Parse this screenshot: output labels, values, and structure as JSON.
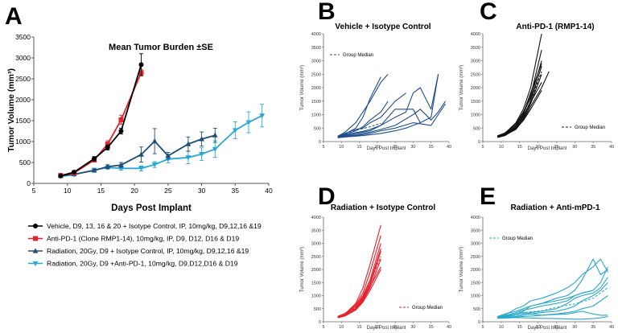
{
  "chart_data": [
    {
      "panel": "A",
      "type": "line",
      "title": "Mean Tumor Burden ±SE",
      "xlabel": "Days Post Implant",
      "ylabel": "Tumor Volume (mm³)",
      "xlim": [
        5,
        40
      ],
      "ylim": [
        0,
        3500
      ],
      "xticks": [
        5,
        10,
        15,
        20,
        25,
        30,
        35,
        40
      ],
      "yticks": [
        0,
        500,
        1000,
        1500,
        2000,
        2500,
        3000,
        3500
      ],
      "series": [
        {
          "name": "Vehicle, D9, 13, 16 & 20 + Isotype Control, IP, 10mg/kg, D9,12,16 &19",
          "color": "#000000",
          "marker": "circle",
          "x": [
            9,
            11,
            14,
            16,
            18,
            21
          ],
          "y": [
            180,
            270,
            590,
            860,
            1250,
            2840
          ],
          "err": [
            15,
            25,
            50,
            60,
            70,
            260
          ]
        },
        {
          "name": "Anti-PD-1 (Clone RMP1-14), 10mg/kg, IP, D9, D12, D16 & D19",
          "color": "#e8202a",
          "marker": "square",
          "x": [
            9,
            11,
            14,
            16,
            18,
            21
          ],
          "y": [
            190,
            250,
            560,
            940,
            1520,
            2650
          ],
          "err": [
            15,
            30,
            50,
            80,
            110,
            80
          ]
        },
        {
          "name": "Radiation, 20Gy, D9 + Isotype Control, IP, 10mg/kg, D9,12,16 &19",
          "color": "#1f4e79",
          "marker": "triangle-up",
          "x": [
            9,
            11,
            14,
            16,
            18,
            21,
            23,
            25,
            28,
            30,
            32
          ],
          "y": [
            180,
            220,
            310,
            400,
            440,
            690,
            1010,
            660,
            940,
            1060,
            1150
          ],
          "err": [
            15,
            25,
            35,
            45,
            60,
            180,
            300,
            80,
            170,
            170,
            170
          ]
        },
        {
          "name": "Radiation, 20Gy, D9 +Anti-PD-1, 10mg/kg, D9,D12,D16 & D19",
          "color": "#29a8d8",
          "marker": "triangle-down",
          "x": [
            9,
            11,
            14,
            16,
            18,
            21,
            23,
            25,
            28,
            30,
            32,
            35,
            37,
            39
          ],
          "y": [
            170,
            210,
            320,
            380,
            360,
            360,
            450,
            580,
            620,
            700,
            820,
            1270,
            1460,
            1620
          ],
          "err": [
            15,
            20,
            30,
            40,
            40,
            60,
            70,
            90,
            150,
            150,
            200,
            200,
            250,
            270
          ]
        }
      ]
    },
    {
      "panel": "B",
      "type": "line",
      "title": "Vehicle + Isotype Control",
      "xlabel": "Days Post Implant",
      "ylabel": "Tumor Volume (mm³)",
      "xlim": [
        5,
        40
      ],
      "ylim": [
        0,
        4000
      ],
      "xticks": [
        5,
        10,
        15,
        20,
        25,
        30,
        35,
        40
      ],
      "yticks": [
        0,
        500,
        1000,
        1500,
        2000,
        2500,
        3000,
        3500,
        4000
      ],
      "legend": "Group Median",
      "color": "#1f4e8c",
      "median": {
        "x": [
          9,
          11,
          14,
          16,
          18,
          21
        ],
        "y": [
          180,
          260,
          420,
          480,
          550,
          680
        ]
      },
      "series": [
        {
          "x": [
            9,
            11,
            14,
            16,
            18,
            21,
            23
          ],
          "y": [
            200,
            350,
            700,
            1100,
            1500,
            2200,
            2500
          ]
        },
        {
          "x": [
            9,
            11,
            14,
            16,
            18,
            21
          ],
          "y": [
            180,
            280,
            500,
            900,
            1600,
            2400
          ]
        },
        {
          "x": [
            9,
            11,
            14,
            16,
            18,
            21,
            23
          ],
          "y": [
            150,
            250,
            400,
            550,
            800,
            1100,
            1500
          ]
        },
        {
          "x": [
            9,
            11,
            14,
            16,
            18,
            21,
            25,
            28
          ],
          "y": [
            200,
            300,
            450,
            500,
            700,
            900,
            1500,
            1800
          ]
        },
        {
          "x": [
            9,
            11,
            14,
            16,
            18,
            21,
            25,
            28,
            30,
            32,
            35,
            37
          ],
          "y": [
            170,
            220,
            300,
            350,
            400,
            600,
            900,
            1100,
            1800,
            2000,
            1200,
            2500
          ]
        },
        {
          "x": [
            9,
            11,
            14,
            16,
            18,
            21,
            25,
            30,
            32,
            35,
            37,
            39
          ],
          "y": [
            160,
            200,
            250,
            300,
            350,
            450,
            600,
            1000,
            1200,
            800,
            1100,
            1500
          ]
        },
        {
          "x": [
            9,
            11,
            14,
            16,
            18,
            21,
            25,
            30,
            35,
            37,
            39
          ],
          "y": [
            150,
            180,
            220,
            260,
            300,
            400,
            500,
            700,
            600,
            1000,
            1400
          ]
        },
        {
          "x": [
            9,
            11,
            14,
            16,
            18,
            21,
            25,
            30,
            32
          ],
          "y": [
            190,
            230,
            330,
            380,
            450,
            600,
            1200,
            1200,
            700
          ]
        },
        {
          "x": [
            9,
            11,
            14,
            16,
            18,
            21,
            25,
            28,
            30,
            32,
            35,
            37
          ],
          "y": [
            140,
            170,
            200,
            220,
            250,
            300,
            400,
            500,
            600,
            700,
            900,
            2500
          ]
        }
      ]
    },
    {
      "panel": "C",
      "type": "line",
      "title": "Anti-PD-1 (RMP1-14)",
      "xlabel": "Days Post Implant",
      "ylabel": "Tumor Volume (mm³)",
      "xlim": [
        5,
        40
      ],
      "ylim": [
        0,
        4000
      ],
      "xticks": [
        5,
        10,
        15,
        20,
        25,
        30,
        35,
        40
      ],
      "yticks": [
        0,
        500,
        1000,
        1500,
        2000,
        2500,
        3000,
        3500,
        4000
      ],
      "legend": "Group Median",
      "color": "#111111",
      "median": {
        "x": [
          9,
          11,
          14,
          16,
          18,
          21
        ],
        "y": [
          190,
          260,
          560,
          940,
          1500,
          2600
        ]
      },
      "series": [
        {
          "x": [
            9,
            11,
            14,
            16,
            18,
            21
          ],
          "y": [
            200,
            300,
            700,
            1200,
            2000,
            4000
          ]
        },
        {
          "x": [
            9,
            11,
            14,
            16,
            18,
            21
          ],
          "y": [
            180,
            280,
            600,
            1000,
            1700,
            3400
          ]
        },
        {
          "x": [
            9,
            11,
            14,
            16,
            18,
            21
          ],
          "y": [
            210,
            320,
            650,
            1100,
            1600,
            3000
          ]
        },
        {
          "x": [
            9,
            11,
            14,
            16,
            18,
            21
          ],
          "y": [
            190,
            260,
            550,
            900,
            1500,
            2800
          ]
        },
        {
          "x": [
            9,
            11,
            14,
            16,
            18,
            21
          ],
          "y": [
            170,
            240,
            500,
            850,
            1400,
            2500
          ]
        },
        {
          "x": [
            9,
            11,
            14,
            16,
            18,
            21,
            23
          ],
          "y": [
            160,
            230,
            450,
            800,
            1300,
            2000,
            2600
          ]
        },
        {
          "x": [
            9,
            11,
            14,
            16,
            18,
            21
          ],
          "y": [
            200,
            270,
            520,
            950,
            1450,
            2200
          ]
        },
        {
          "x": [
            9,
            11,
            14,
            16,
            18,
            21
          ],
          "y": [
            150,
            220,
            480,
            780,
            1200,
            1900
          ]
        },
        {
          "x": [
            9,
            11,
            14,
            16,
            18,
            21
          ],
          "y": [
            220,
            300,
            600,
            1050,
            1800,
            2900
          ]
        }
      ]
    },
    {
      "panel": "D",
      "type": "line",
      "title": "Radiation + Isotype Control",
      "xlabel": "Days Post Implant",
      "ylabel": "Tumor Volume (mm³)",
      "xlim": [
        5,
        40
      ],
      "ylim": [
        0,
        4000
      ],
      "xticks": [
        5,
        10,
        15,
        20,
        25,
        30,
        35,
        40
      ],
      "yticks": [
        0,
        500,
        1000,
        1500,
        2000,
        2500,
        3000,
        3500,
        4000
      ],
      "legend": "Group Median",
      "color": "#e8202a",
      "median": {
        "x": [
          9,
          11,
          14,
          16,
          18,
          21
        ],
        "y": [
          180,
          250,
          550,
          920,
          1480,
          2500
        ]
      },
      "series": [
        {
          "x": [
            9,
            11,
            14,
            16,
            18,
            21
          ],
          "y": [
            200,
            300,
            700,
            1300,
            2200,
            3700
          ]
        },
        {
          "x": [
            9,
            11,
            14,
            16,
            18,
            21
          ],
          "y": [
            180,
            280,
            650,
            1100,
            1900,
            3300
          ]
        },
        {
          "x": [
            9,
            11,
            14,
            16,
            18,
            21
          ],
          "y": [
            190,
            260,
            600,
            1000,
            1600,
            3000
          ]
        },
        {
          "x": [
            9,
            11,
            14,
            16,
            18,
            21
          ],
          "y": [
            210,
            320,
            580,
            950,
            1500,
            2800
          ]
        },
        {
          "x": [
            9,
            11,
            14,
            16,
            18,
            21
          ],
          "y": [
            170,
            240,
            520,
            900,
            1400,
            2700
          ]
        },
        {
          "x": [
            9,
            11,
            14,
            16,
            18,
            21
          ],
          "y": [
            160,
            230,
            480,
            800,
            1300,
            2400
          ]
        },
        {
          "x": [
            9,
            11,
            14,
            16,
            18,
            21
          ],
          "y": [
            200,
            270,
            500,
            850,
            1350,
            2100
          ]
        },
        {
          "x": [
            9,
            11,
            14,
            16,
            18,
            21
          ],
          "y": [
            150,
            220,
            450,
            750,
            1200,
            2000
          ]
        }
      ]
    },
    {
      "panel": "E",
      "type": "line",
      "title": "Radiation + Anti-mPD-1",
      "xlabel": "Days Post Implant",
      "ylabel": "Tumor Volume (mm³)",
      "xlim": [
        5,
        40
      ],
      "ylim": [
        0,
        4000
      ],
      "xticks": [
        5,
        10,
        15,
        20,
        25,
        30,
        35,
        40
      ],
      "yticks": [
        0,
        500,
        1000,
        1500,
        2000,
        2500,
        3000,
        3500,
        4000
      ],
      "legend": "Group Median",
      "color": "#29a8c8",
      "median": {
        "x": [
          9,
          11,
          14,
          16,
          18,
          21,
          25,
          30,
          35,
          39
        ],
        "y": [
          170,
          210,
          300,
          360,
          380,
          420,
          550,
          680,
          900,
          1300
        ]
      },
      "series": [
        {
          "x": [
            9,
            11,
            14,
            16,
            18,
            21,
            25,
            28,
            30,
            32,
            35,
            37,
            39
          ],
          "y": [
            200,
            250,
            500,
            600,
            800,
            900,
            1100,
            1300,
            1500,
            1800,
            2100,
            2400,
            1900
          ]
        },
        {
          "x": [
            9,
            11,
            14,
            16,
            18,
            21,
            25,
            28,
            30,
            32,
            35,
            37,
            39
          ],
          "y": [
            180,
            200,
            300,
            400,
            600,
            700,
            900,
            1000,
            1200,
            1600,
            2400,
            1800,
            2000
          ]
        },
        {
          "x": [
            9,
            11,
            14,
            16,
            18,
            21,
            25,
            28,
            30,
            32,
            35,
            37,
            39
          ],
          "y": [
            170,
            230,
            350,
            450,
            500,
            600,
            700,
            800,
            1000,
            1100,
            1200,
            1500,
            2100
          ]
        },
        {
          "x": [
            9,
            11,
            14,
            16,
            18,
            21,
            25,
            28,
            30,
            32,
            35,
            37,
            39
          ],
          "y": [
            160,
            180,
            250,
            300,
            350,
            400,
            500,
            700,
            900,
            1000,
            1100,
            1300,
            1700
          ]
        },
        {
          "x": [
            9,
            11,
            14,
            16,
            18,
            21,
            25,
            28,
            30,
            32,
            35,
            37,
            39
          ],
          "y": [
            150,
            170,
            200,
            250,
            300,
            350,
            400,
            500,
            600,
            800,
            1000,
            1200,
            1500
          ]
        },
        {
          "x": [
            9,
            11,
            14,
            16,
            18,
            21,
            25,
            28,
            30,
            32,
            35,
            37,
            39
          ],
          "y": [
            190,
            220,
            300,
            350,
            300,
            250,
            300,
            350,
            400,
            500,
            600,
            800,
            1000
          ]
        },
        {
          "x": [
            9,
            11,
            14,
            16,
            18,
            21,
            25,
            28,
            30,
            32,
            35,
            37,
            39
          ],
          "y": [
            140,
            150,
            180,
            200,
            220,
            250,
            280,
            300,
            350,
            400,
            300,
            250,
            250
          ]
        },
        {
          "x": [
            9,
            11,
            14,
            16,
            18,
            21,
            25,
            28,
            30,
            32,
            35,
            37,
            39
          ],
          "y": [
            130,
            140,
            160,
            150,
            140,
            130,
            120,
            110,
            100,
            100,
            120,
            150,
            200
          ]
        },
        {
          "x": [
            9,
            11,
            14,
            16,
            18,
            21,
            25,
            28,
            30,
            32,
            35
          ],
          "y": [
            200,
            300,
            400,
            500,
            600,
            700,
            800,
            900,
            1000,
            1100,
            1200
          ]
        }
      ]
    }
  ]
}
